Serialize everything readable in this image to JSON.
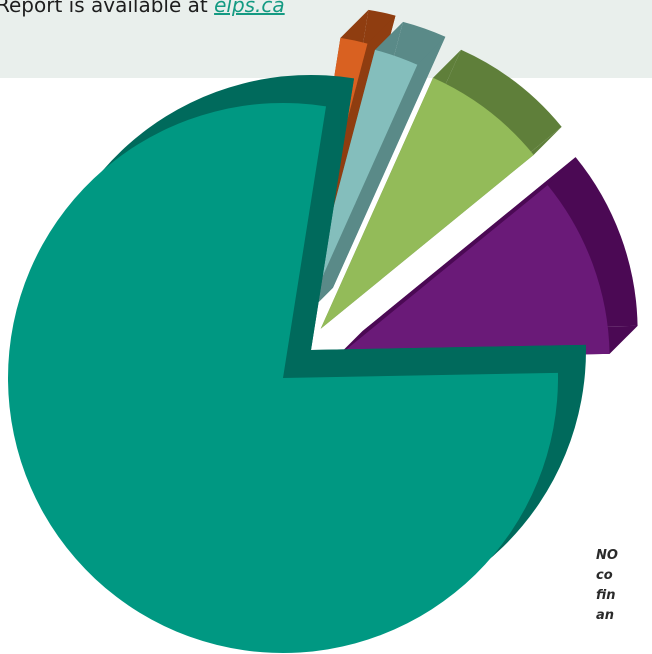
{
  "report": {
    "prefix": "Report is available at ",
    "link_text": "elps.ca"
  },
  "note_lines": [
    "NO",
    "co",
    "fin",
    "an"
  ],
  "chart_data": {
    "type": "pie",
    "style": "3d-exploded",
    "title": "",
    "slices": [
      {
        "value": 77.8,
        "color": "#009882",
        "side": "#006a5c"
      },
      {
        "value": 10.6,
        "color": "#6a1a78",
        "side": "#4b0954"
      },
      {
        "value": 7.4,
        "color": "#93bb59",
        "side": "#5f7f3a"
      },
      {
        "value": 2.6,
        "color": "#84bebc",
        "side": "#5a8a88"
      },
      {
        "value": 1.6,
        "color": "#d96121",
        "side": "#8f3d10"
      }
    ]
  }
}
